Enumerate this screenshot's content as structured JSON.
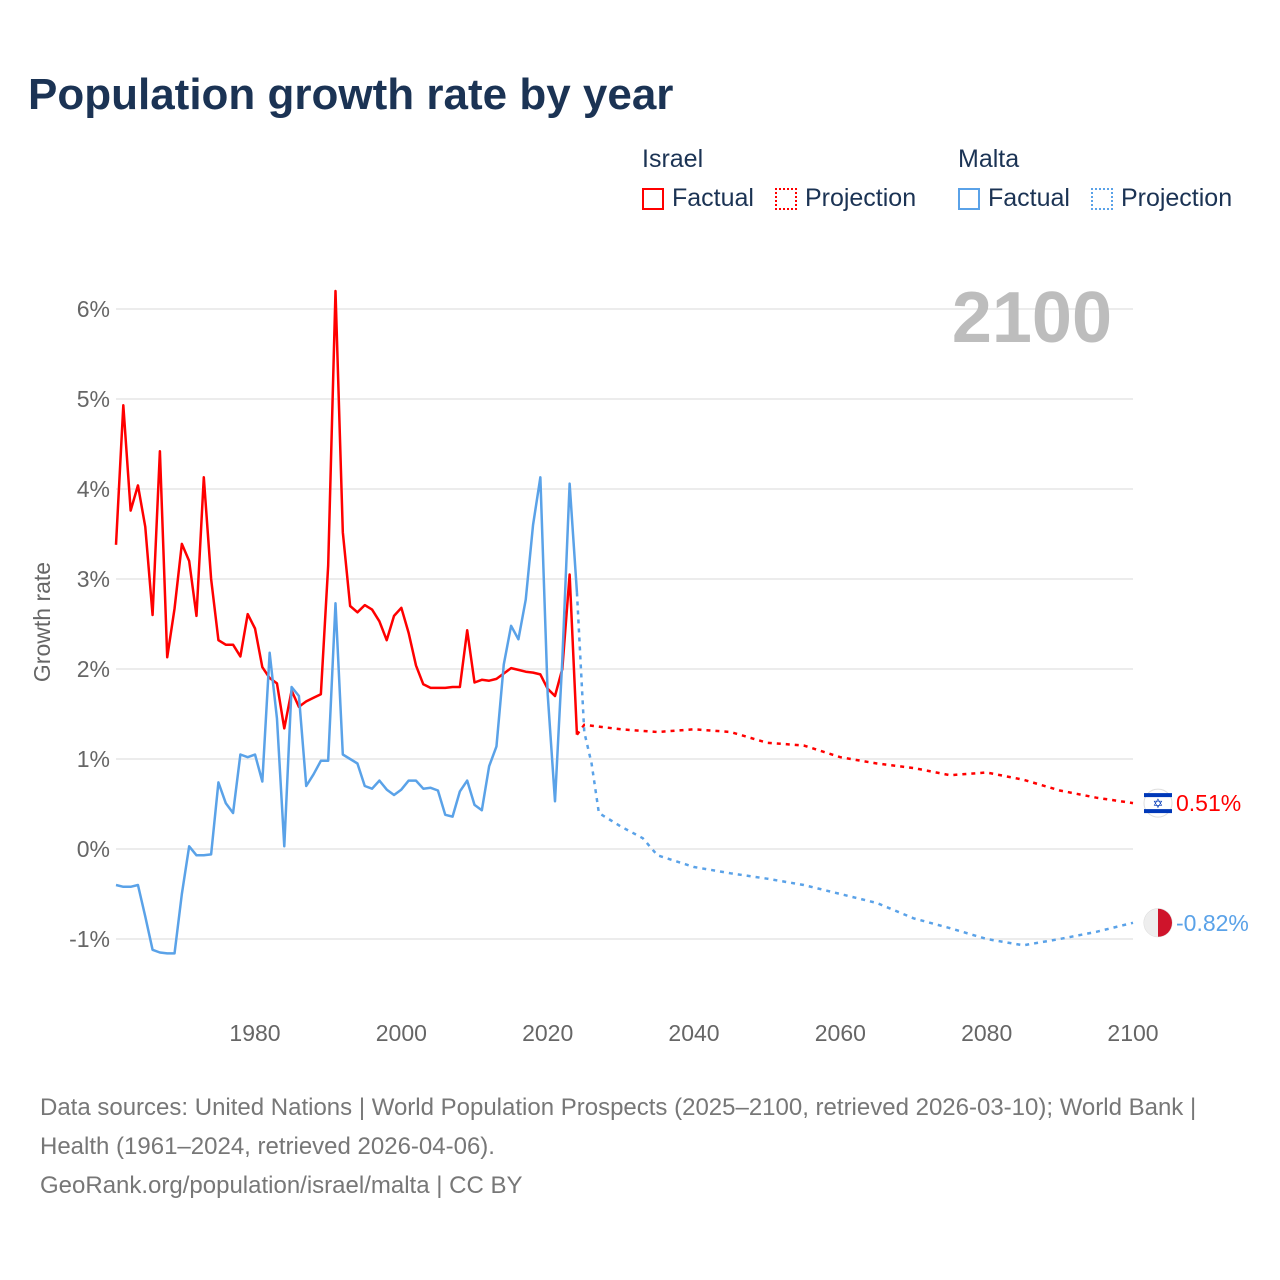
{
  "title": "Population growth rate by year",
  "legend": [
    {
      "group": "Israel",
      "color": "#ff0000",
      "factual_label": "Factual",
      "projection_label": "Projection"
    },
    {
      "group": "Malta",
      "color": "#5aa2e8",
      "factual_label": "Factual",
      "projection_label": "Projection"
    }
  ],
  "year_label": "2100",
  "sources": "Data sources: United Nations | World Population Prospects (2025–2100, retrieved 2026-03-10); World Bank | Health (1961–2024, retrieved 2026-04-06).",
  "credit": "GeoRank.org/population/israel/malta | CC BY",
  "chart_data": {
    "type": "line",
    "title": "Population growth rate by year",
    "xlabel": "",
    "ylabel": "Growth rate",
    "xlim": [
      1961,
      2100
    ],
    "ylim": [
      -1.5,
      6.5
    ],
    "x_ticks": [
      1980,
      2000,
      2020,
      2040,
      2060,
      2080,
      2100
    ],
    "x_tick_labels": [
      "1980",
      "2000",
      "2020",
      "2040",
      "2060",
      "2080",
      "2100"
    ],
    "y_ticks": [
      -1,
      0,
      1,
      2,
      3,
      4,
      5,
      6
    ],
    "y_tick_labels": [
      "-1%",
      "0%",
      "1%",
      "2%",
      "3%",
      "4%",
      "5%",
      "6%"
    ],
    "grid": true,
    "legend_position": "top-right",
    "series": [
      {
        "name": "Israel",
        "color": "#ff0000",
        "end_label": "0.51%",
        "flag": "israel-flag",
        "factual": {
          "x": [
            1961,
            1962,
            1963,
            1964,
            1965,
            1966,
            1967,
            1968,
            1969,
            1970,
            1971,
            1972,
            1973,
            1974,
            1975,
            1976,
            1977,
            1978,
            1979,
            1980,
            1981,
            1982,
            1983,
            1984,
            1985,
            1986,
            1987,
            1988,
            1989,
            1990,
            1991,
            1992,
            1993,
            1994,
            1995,
            1996,
            1997,
            1998,
            1999,
            2000,
            2001,
            2002,
            2003,
            2004,
            2005,
            2006,
            2007,
            2008,
            2009,
            2010,
            2011,
            2012,
            2013,
            2014,
            2015,
            2016,
            2017,
            2018,
            2019,
            2020,
            2021,
            2022,
            2023,
            2024
          ],
          "y": [
            3.38,
            4.93,
            3.76,
            4.04,
            3.58,
            2.6,
            4.42,
            2.13,
            2.67,
            3.39,
            3.2,
            2.59,
            4.13,
            3.0,
            2.32,
            2.27,
            2.27,
            2.14,
            2.61,
            2.45,
            2.02,
            1.9,
            1.84,
            1.34,
            1.76,
            1.58,
            1.64,
            1.68,
            1.72,
            3.15,
            6.2,
            3.52,
            2.7,
            2.63,
            2.71,
            2.66,
            2.53,
            2.32,
            2.59,
            2.68,
            2.4,
            2.04,
            1.83,
            1.79,
            1.79,
            1.79,
            1.8,
            1.8,
            2.43,
            1.85,
            1.88,
            1.87,
            1.89,
            1.95,
            2.01,
            1.99,
            1.97,
            1.96,
            1.94,
            1.78,
            1.7,
            2.0,
            3.05,
            1.27
          ]
        },
        "projection": {
          "x": [
            2024,
            2025,
            2030,
            2035,
            2040,
            2045,
            2050,
            2055,
            2060,
            2065,
            2070,
            2075,
            2080,
            2085,
            2090,
            2095,
            2100
          ],
          "y": [
            1.27,
            1.38,
            1.33,
            1.3,
            1.33,
            1.3,
            1.18,
            1.15,
            1.02,
            0.95,
            0.9,
            0.82,
            0.85,
            0.77,
            0.65,
            0.57,
            0.51
          ]
        }
      },
      {
        "name": "Malta",
        "color": "#5aa2e8",
        "end_label": "-0.82%",
        "flag": "malta-flag",
        "factual": {
          "x": [
            1961,
            1962,
            1963,
            1964,
            1965,
            1966,
            1967,
            1968,
            1969,
            1970,
            1971,
            1972,
            1973,
            1974,
            1975,
            1976,
            1977,
            1978,
            1979,
            1980,
            1981,
            1982,
            1983,
            1984,
            1985,
            1986,
            1987,
            1988,
            1989,
            1990,
            1991,
            1992,
            1993,
            1994,
            1995,
            1996,
            1997,
            1998,
            1999,
            2000,
            2001,
            2002,
            2003,
            2004,
            2005,
            2006,
            2007,
            2008,
            2009,
            2010,
            2011,
            2012,
            2013,
            2014,
            2015,
            2016,
            2017,
            2018,
            2019,
            2020,
            2021,
            2022,
            2023,
            2024
          ],
          "y": [
            -0.4,
            -0.42,
            -0.42,
            -0.4,
            -0.75,
            -1.12,
            -1.15,
            -1.16,
            -1.16,
            -0.5,
            0.03,
            -0.07,
            -0.07,
            -0.06,
            0.74,
            0.51,
            0.4,
            1.05,
            1.02,
            1.05,
            0.75,
            2.18,
            1.45,
            0.03,
            1.8,
            1.7,
            0.7,
            0.83,
            0.98,
            0.98,
            2.73,
            1.05,
            1.0,
            0.95,
            0.7,
            0.67,
            0.76,
            0.66,
            0.6,
            0.66,
            0.76,
            0.76,
            0.67,
            0.68,
            0.65,
            0.38,
            0.36,
            0.64,
            0.76,
            0.49,
            0.43,
            0.92,
            1.14,
            2.05,
            2.48,
            2.33,
            2.77,
            3.6,
            4.13,
            1.72,
            0.53,
            2.1,
            4.06,
            2.85
          ]
        },
        "projection": {
          "x": [
            2024,
            2025,
            2026,
            2027,
            2030,
            2033,
            2035,
            2040,
            2045,
            2050,
            2055,
            2060,
            2065,
            2070,
            2075,
            2080,
            2085,
            2090,
            2095,
            2100
          ],
          "y": [
            2.85,
            1.3,
            0.95,
            0.4,
            0.25,
            0.12,
            -0.07,
            -0.2,
            -0.27,
            -0.33,
            -0.4,
            -0.5,
            -0.6,
            -0.77,
            -0.88,
            -1.0,
            -1.07,
            -1.0,
            -0.92,
            -0.82
          ]
        }
      }
    ]
  }
}
